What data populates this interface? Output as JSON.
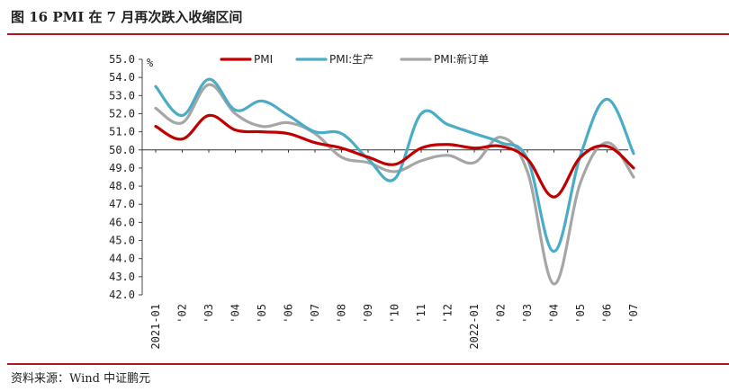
{
  "figure": {
    "title": "图 16   PMI 在 7 月再次跌入收缩区间",
    "source": "资料来源：Wind   中证鹏元"
  },
  "chart_data": {
    "type": "line",
    "ylabel": "%",
    "ylim": [
      42.0,
      55.0
    ],
    "yticks": [
      "55.0",
      "54.0",
      "53.0",
      "52.0",
      "51.0",
      "50.0",
      "49.0",
      "48.0",
      "47.0",
      "46.0",
      "45.0",
      "44.0",
      "43.0",
      "42.0"
    ],
    "categories": [
      "2021-01",
      "'02",
      "'03",
      "'04",
      "'05",
      "'06",
      "'07",
      "'08",
      "'09",
      "'10",
      "'11",
      "'12",
      "2022-01",
      "'02",
      "'03",
      "'04",
      "'05",
      "'06",
      "'07"
    ],
    "baseline": 50.0,
    "legend_position": "top",
    "series": [
      {
        "name": "PMI",
        "color": "#c00000",
        "values": [
          51.3,
          50.6,
          51.9,
          51.1,
          51.0,
          50.9,
          50.4,
          50.1,
          49.6,
          49.2,
          50.1,
          50.3,
          50.1,
          50.2,
          49.5,
          47.4,
          49.6,
          50.2,
          49.0
        ]
      },
      {
        "name": "PMI:生产",
        "color": "#4bacc6",
        "values": [
          53.5,
          51.9,
          53.9,
          52.2,
          52.7,
          51.9,
          51.0,
          50.9,
          49.5,
          48.4,
          52.0,
          51.4,
          50.9,
          50.4,
          49.5,
          44.4,
          49.7,
          52.8,
          49.8
        ]
      },
      {
        "name": "PMI:新订单",
        "color": "#a6a6a6",
        "values": [
          52.3,
          51.5,
          53.6,
          52.0,
          51.3,
          51.5,
          50.9,
          49.6,
          49.3,
          48.8,
          49.4,
          49.7,
          49.3,
          50.7,
          48.8,
          42.6,
          48.2,
          50.4,
          48.5
        ]
      }
    ]
  }
}
